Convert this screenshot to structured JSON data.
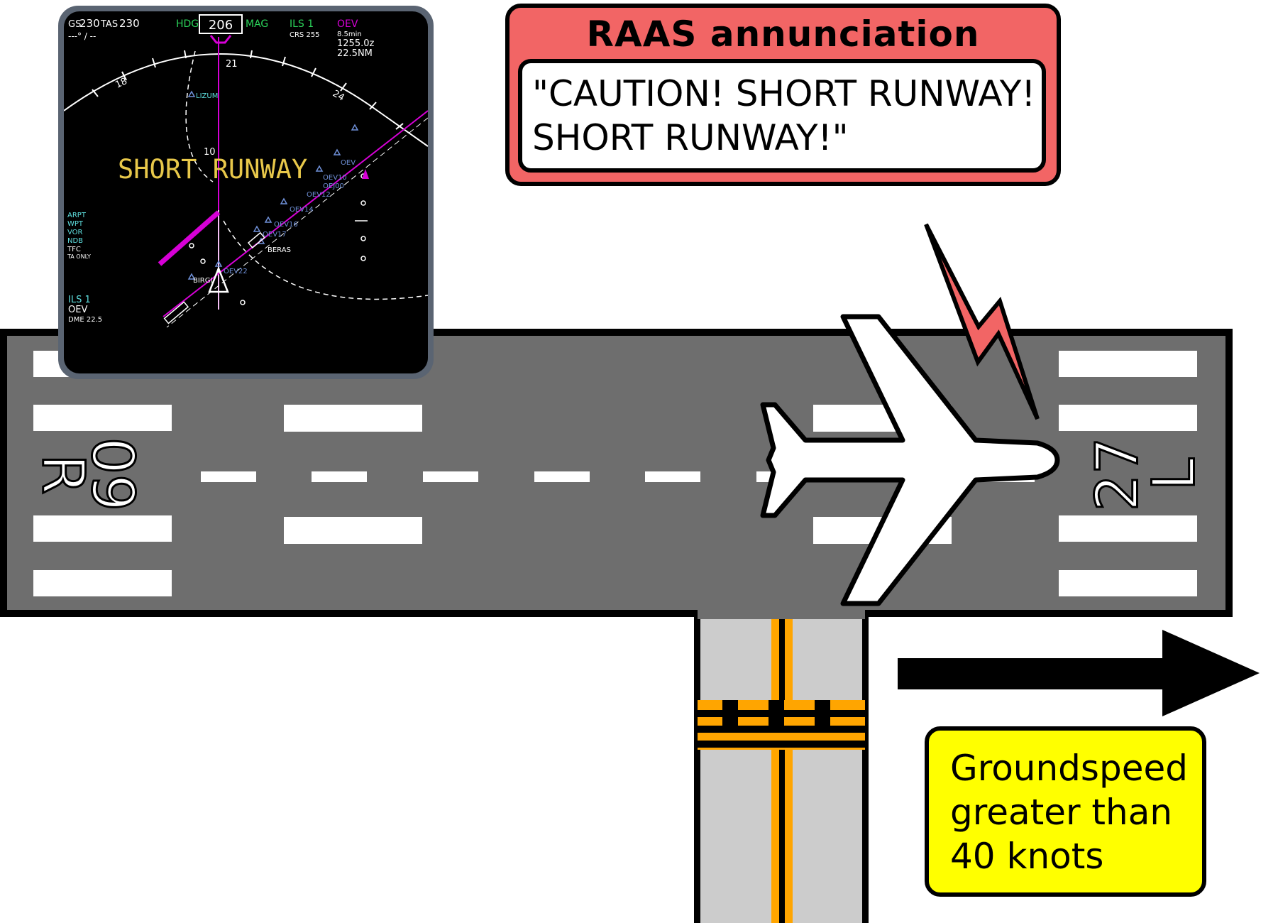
{
  "raas": {
    "title": "RAAS annunciation",
    "callout_line1": "\"CAUTION! SHORT RUNWAY!",
    "callout_line2": "SHORT RUNWAY!\""
  },
  "groundspeed_note": {
    "line1": "Groundspeed",
    "line2": "greater than",
    "line3": "40 knots"
  },
  "runway": {
    "left_designator_number": "09",
    "left_designator_letter": "R",
    "right_designator_number": "27",
    "right_designator_letter": "L"
  },
  "nav_display": {
    "gs_label": "GS",
    "gs_value": "230",
    "tas_label": "TAS",
    "tas_value": "230",
    "wind_readout": "---° / --",
    "hdg_label": "HDG",
    "heading_value": "206",
    "mag_label": "MAG",
    "ils_label": "ILS 1",
    "crs_label": "CRS 255",
    "waypoint": "OEV",
    "eta_min": "8.5min",
    "time": "1255.0z",
    "distance": "22.5NM",
    "compass_labels": [
      "18",
      "21",
      "24"
    ],
    "range_mark": "10",
    "alert_text": "SHORT RUNWAY",
    "option_labels": [
      "ARPT",
      "WPT",
      "VOR",
      "NDB",
      "TFC",
      "TA ONLY"
    ],
    "fixes": [
      "LIZUM",
      "OEV10",
      "OEJ00",
      "OEV12",
      "OEV14",
      "OEV16",
      "OEV17",
      "BERAS",
      "OEV22",
      "BIRGI",
      "OEV"
    ],
    "bottom_ils": "ILS 1",
    "bottom_station": "OEV",
    "bottom_dme": "DME 22.5",
    "colors": {
      "alert": "#e8c84a",
      "magenta": "#d600d6",
      "green": "#2bd45a",
      "cyan": "#5fe0e0",
      "fix_blue": "#6f90d8"
    }
  },
  "colors": {
    "runway": "#6e6e6e",
    "taxiway": "#cccccc",
    "taxi_marking": "#ffa500",
    "raas_box": "#f26565",
    "groundspeed_box": "#ffff00",
    "lightning": "#f26565"
  }
}
